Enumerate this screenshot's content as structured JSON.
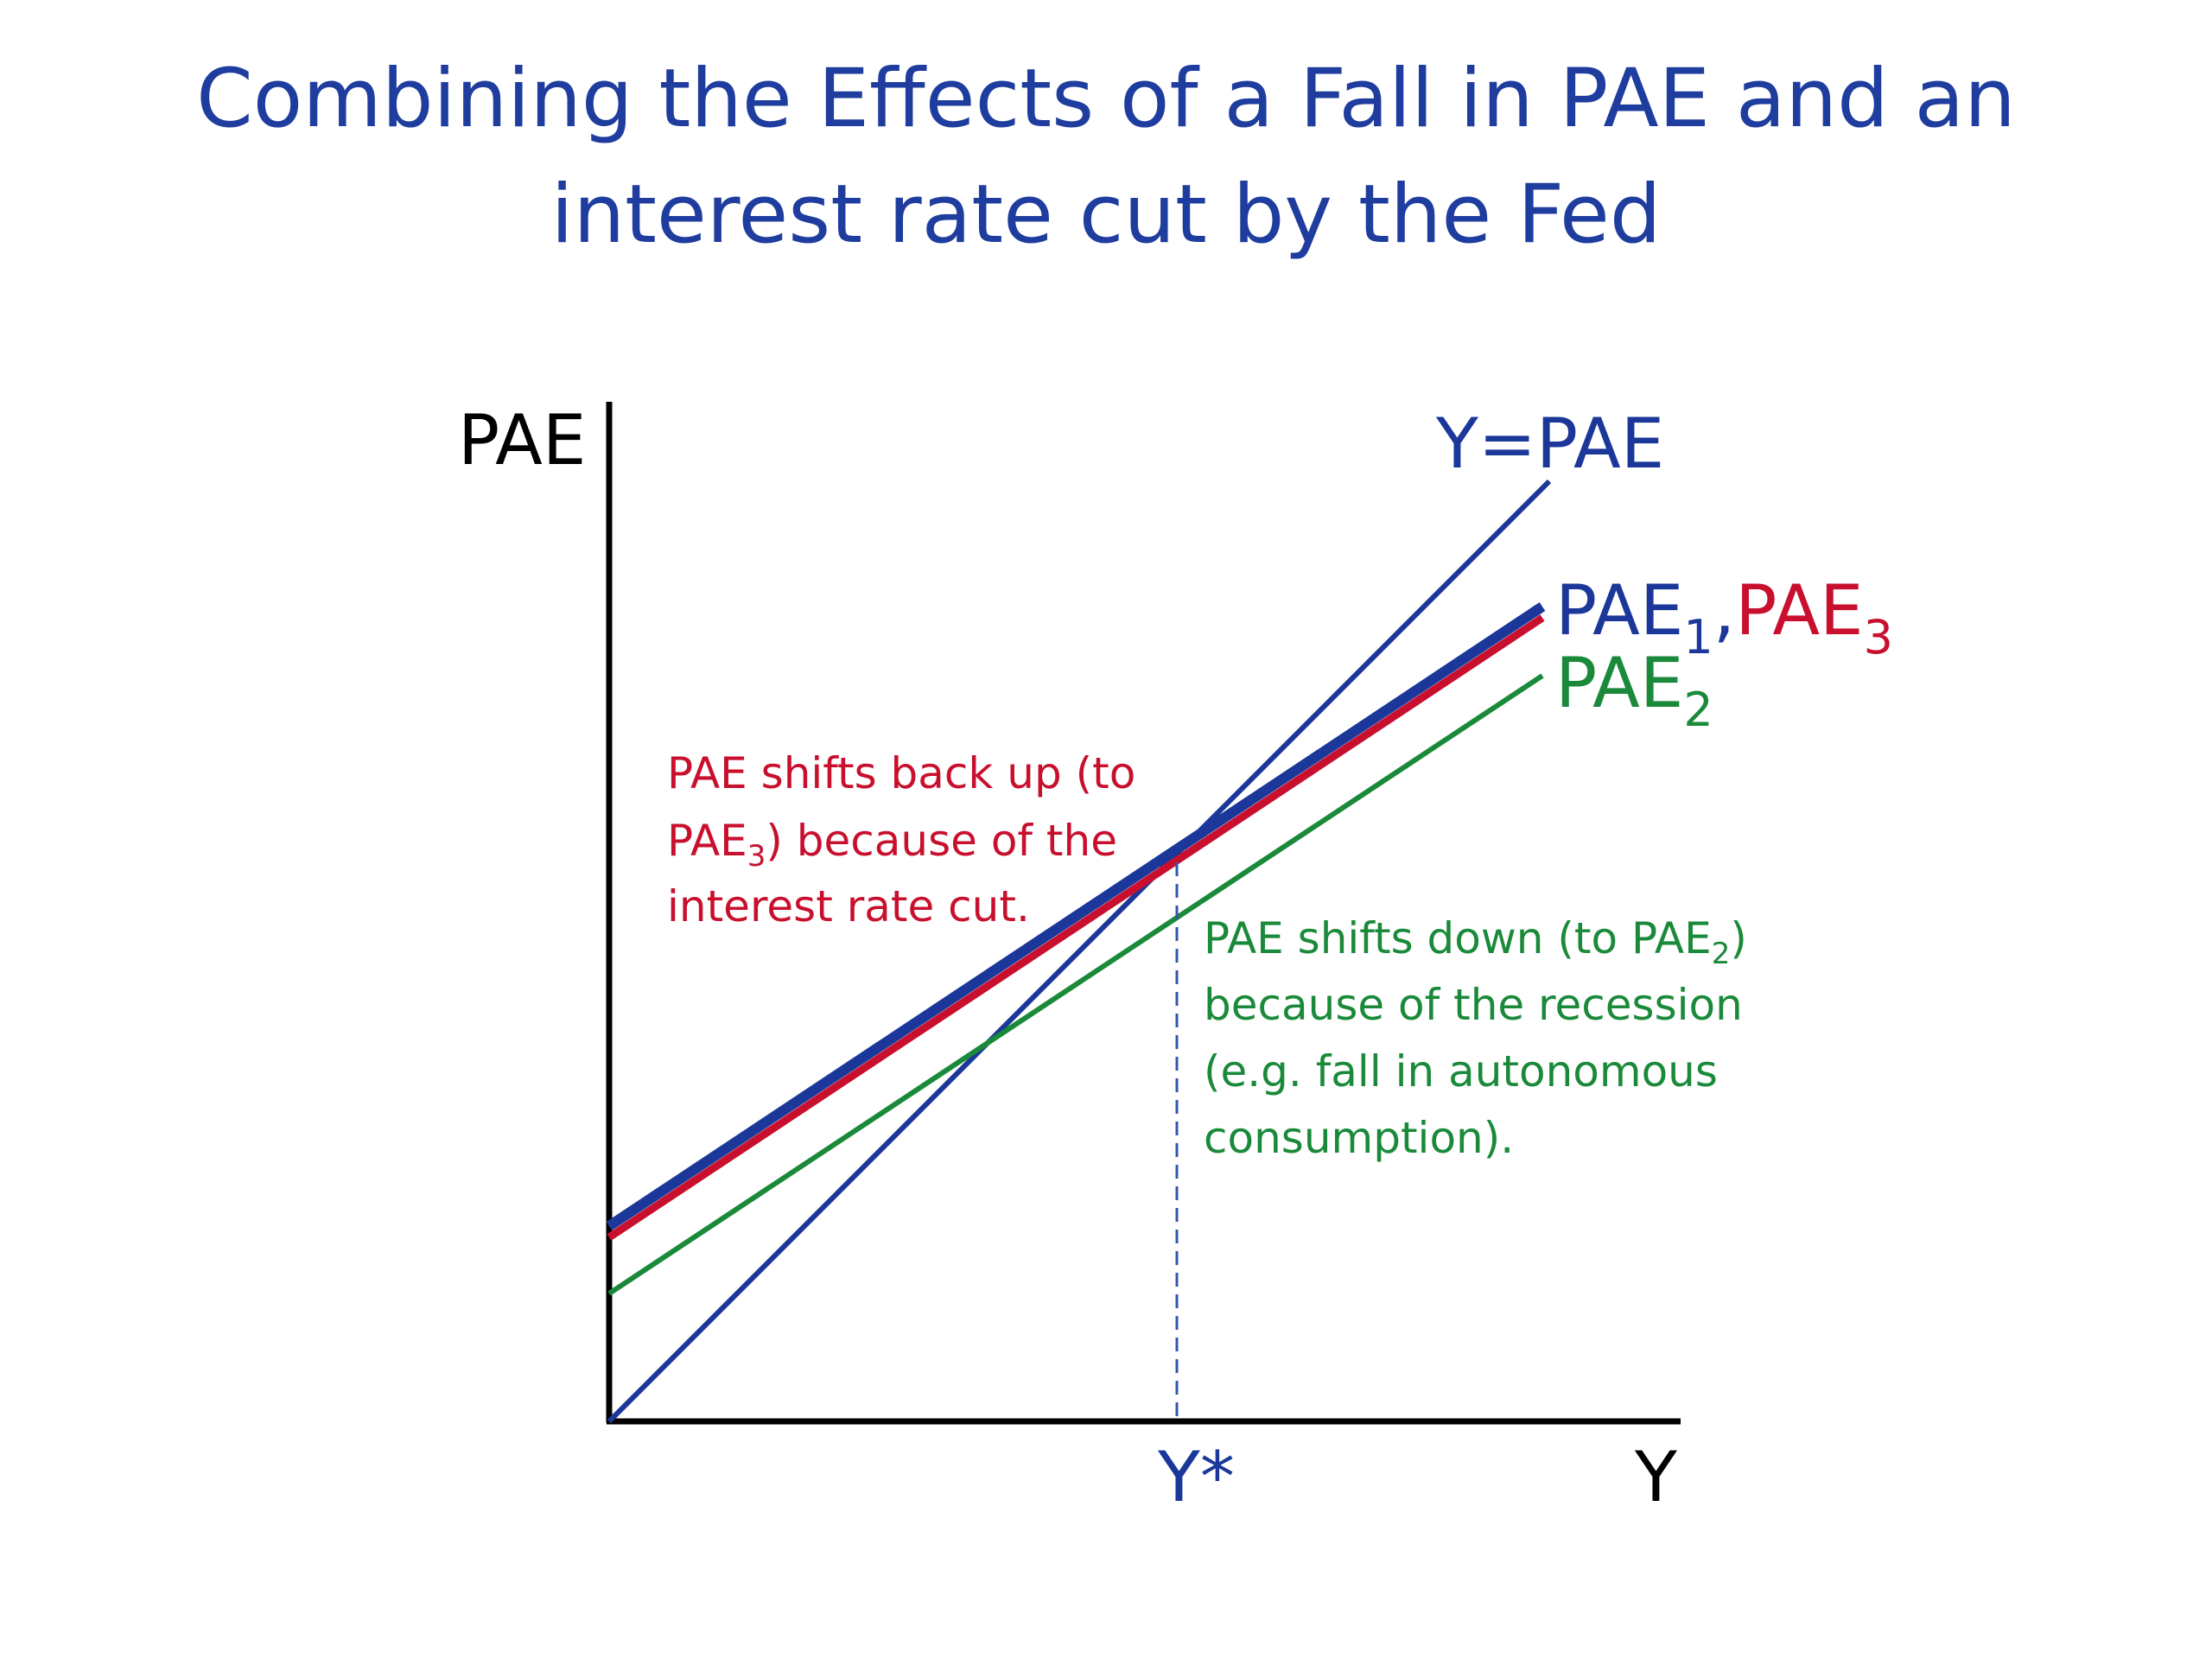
{
  "title": {
    "line1": "Combining the Effects of a Fall in PAE and an",
    "line2": "interest rate cut by the Fed"
  },
  "axes": {
    "y_label": "PAE",
    "x_label": "Y",
    "x_marker": "Y*"
  },
  "curves": {
    "line_45": {
      "label": "Y=PAE",
      "color": "#1a3799"
    },
    "pae1": {
      "label": "PAE",
      "sub": "1",
      "color": "#1a3799"
    },
    "separator": ",",
    "pae3": {
      "label": "PAE",
      "sub": "3",
      "color": "#c8102e"
    },
    "pae2": {
      "label": "PAE",
      "sub": "2",
      "color": "#1a8a3a"
    }
  },
  "annotations": {
    "up": {
      "color": "#c8102e",
      "line1": "PAE shifts back up (to",
      "line2_pre": "PAE",
      "line2_sub": "3",
      "line2_post": ") because of the",
      "line3": "interest rate cut."
    },
    "down": {
      "color": "#1a8a3a",
      "line1_pre": "PAE shifts down (to PAE",
      "line1_sub": "2",
      "line1_post": ")",
      "line2": "because of the recession",
      "line3": "(e.g. fall in autonomous",
      "line4": "consumption)."
    }
  }
}
